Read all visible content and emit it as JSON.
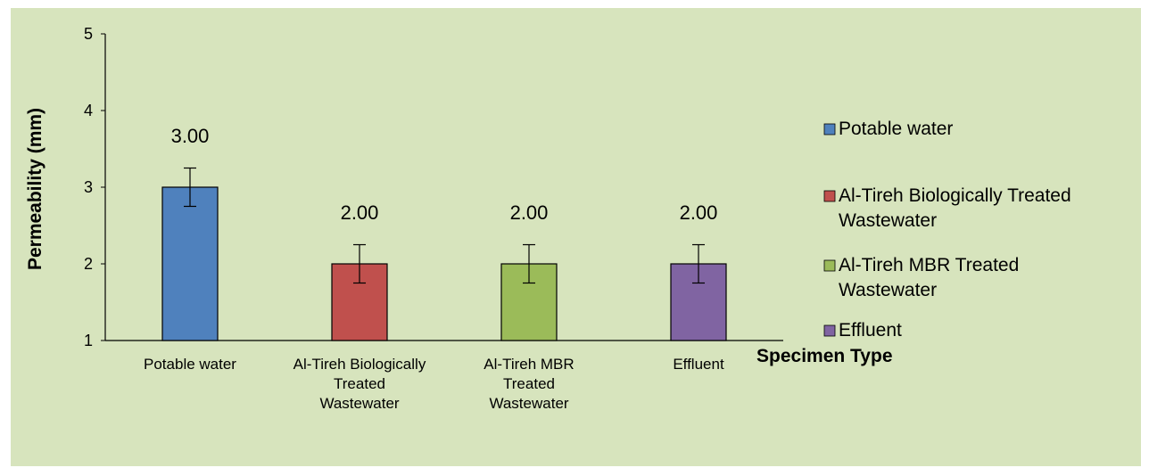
{
  "chart_data": {
    "type": "bar",
    "categories": [
      "Potable water",
      "Al-Tireh Biologically Treated Wastewater",
      "Al-Tireh MBR Treated Wastewater",
      "Effluent"
    ],
    "category_labels": [
      [
        "Potable water"
      ],
      [
        "Al-Tireh Biologically",
        "Treated",
        "Wastewater"
      ],
      [
        "Al-Tireh MBR",
        "Treated",
        "Wastewater"
      ],
      [
        "Effluent"
      ]
    ],
    "values": [
      3.0,
      2.0,
      2.0,
      2.0
    ],
    "error": [
      0.25,
      0.25,
      0.25,
      0.25
    ],
    "data_labels": [
      "3.00",
      "2.00",
      "2.00",
      "2.00"
    ],
    "colors": [
      "#4f81bd",
      "#c0504d",
      "#9bbb59",
      "#8064a2"
    ],
    "legend": {
      "placement": "right",
      "items": [
        [
          "Potable water"
        ],
        [
          "Al-Tireh Biologically Treated",
          "Wastewater"
        ],
        [
          "Al-Tireh MBR Treated",
          "Wastewater"
        ],
        [
          "Effluent"
        ]
      ]
    },
    "title": "",
    "xlabel": "Specimen Type",
    "ylabel": "Permeability (mm)",
    "ylim": [
      1,
      5
    ],
    "yticks": [
      "1",
      "2",
      "3",
      "4",
      "5"
    ],
    "grid": false,
    "background": "#d7e4bd"
  }
}
